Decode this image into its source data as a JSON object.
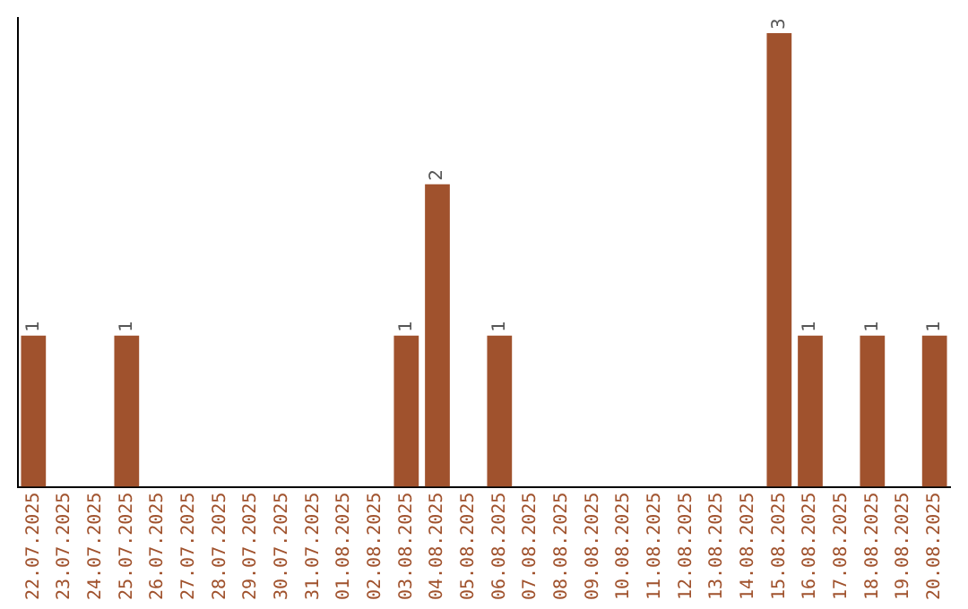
{
  "chart_data": {
    "type": "bar",
    "categories": [
      "22.07.2025",
      "23.07.2025",
      "24.07.2025",
      "25.07.2025",
      "26.07.2025",
      "27.07.2025",
      "28.07.2025",
      "29.07.2025",
      "30.07.2025",
      "31.07.2025",
      "01.08.2025",
      "02.08.2025",
      "03.08.2025",
      "04.08.2025",
      "05.08.2025",
      "06.08.2025",
      "07.08.2025",
      "08.08.2025",
      "09.08.2025",
      "10.08.2025",
      "11.08.2025",
      "12.08.2025",
      "13.08.2025",
      "14.08.2025",
      "15.08.2025",
      "16.08.2025",
      "17.08.2025",
      "18.08.2025",
      "19.08.2025",
      "20.08.2025"
    ],
    "values": [
      1,
      0,
      0,
      1,
      0,
      0,
      0,
      0,
      0,
      0,
      0,
      0,
      1,
      2,
      0,
      1,
      0,
      0,
      0,
      0,
      0,
      0,
      0,
      0,
      3,
      1,
      0,
      1,
      0,
      1
    ],
    "value_labels": [
      "1",
      null,
      null,
      "1",
      null,
      null,
      null,
      null,
      null,
      null,
      null,
      null,
      "1",
      "2",
      null,
      "1",
      null,
      null,
      null,
      null,
      null,
      null,
      null,
      null,
      "3",
      "1",
      null,
      "1",
      null,
      "1"
    ],
    "color": "#a0522d",
    "ylim": [
      0,
      3.1
    ]
  }
}
